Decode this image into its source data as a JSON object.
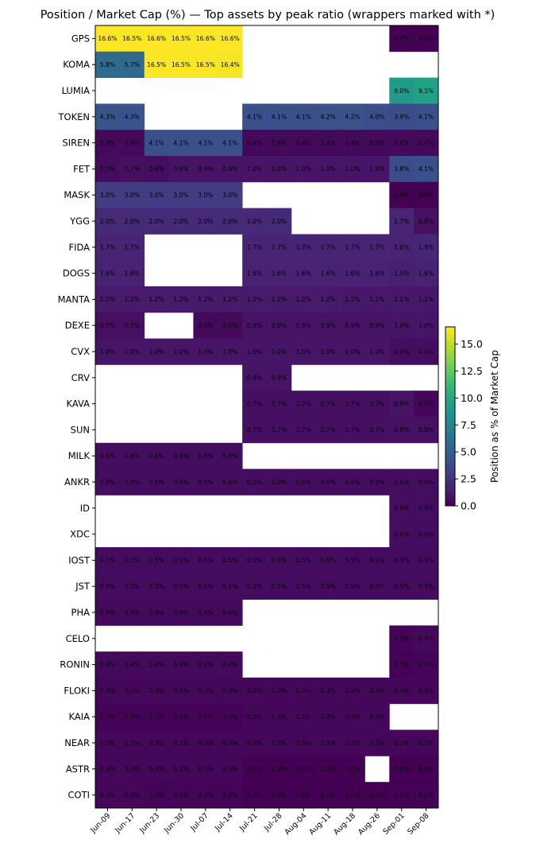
{
  "chart_data": {
    "type": "heatmap",
    "title": "Position / Market Cap (%) — Top assets by peak ratio (wrappers marked with *)",
    "xlabel": "",
    "ylabel": "",
    "columns": [
      "Jun-09",
      "Jun-17",
      "Jun-23",
      "Jun-30",
      "Jul-07",
      "Jul-14",
      "Jul-21",
      "Jul-28",
      "Aug-04",
      "Aug-11",
      "Aug-18",
      "Aug-26",
      "Sep-01",
      "Sep-08"
    ],
    "rows": [
      "GPS",
      "KOMA",
      "LUMIA",
      "TOKEN",
      "SIREN",
      "FET",
      "MASK",
      "YGG",
      "FIDA",
      "DOGS",
      "MANTA",
      "DEXE",
      "CVX",
      "CRV",
      "KAVA",
      "SUN",
      "MILK",
      "ANKR",
      "ID",
      "XDC",
      "IOST",
      "JST",
      "PHA",
      "CELO",
      "RONIN",
      "FLOKI",
      "KAIA",
      "NEAR",
      "ASTR",
      "COTI"
    ],
    "values": [
      [
        16.6,
        16.5,
        16.6,
        16.5,
        16.6,
        16.6,
        null,
        null,
        null,
        null,
        null,
        null,
        0.0,
        0.0
      ],
      [
        5.8,
        5.7,
        16.5,
        16.5,
        16.5,
        16.4,
        null,
        null,
        null,
        null,
        null,
        null,
        null,
        null
      ],
      [
        null,
        null,
        null,
        null,
        null,
        null,
        null,
        null,
        null,
        null,
        null,
        null,
        9.0,
        9.5
      ],
      [
        4.3,
        4.3,
        null,
        null,
        null,
        null,
        4.1,
        4.1,
        4.1,
        4.2,
        4.2,
        4.0,
        3.9,
        4.1
      ],
      [
        0.4,
        0.4,
        4.1,
        4.1,
        4.1,
        4.1,
        0.4,
        0.4,
        0.4,
        0.4,
        0.4,
        0.4,
        0.4,
        0.4
      ],
      [
        0.5,
        0.7,
        0.6,
        0.9,
        0.9,
        0.9,
        1.0,
        1.0,
        1.0,
        1.0,
        1.0,
        1.0,
        3.8,
        4.1
      ],
      [
        3.0,
        3.0,
        3.0,
        3.0,
        3.0,
        3.0,
        null,
        null,
        null,
        null,
        null,
        null,
        0.0,
        0.0
      ],
      [
        2.0,
        2.0,
        2.0,
        2.0,
        2.0,
        2.0,
        2.0,
        2.0,
        null,
        null,
        null,
        null,
        1.7,
        0.8
      ],
      [
        1.7,
        1.7,
        null,
        null,
        null,
        null,
        1.7,
        1.7,
        1.7,
        1.7,
        1.7,
        1.7,
        1.6,
        1.8
      ],
      [
        1.6,
        1.6,
        null,
        null,
        null,
        null,
        1.6,
        1.6,
        1.6,
        1.6,
        1.6,
        1.6,
        1.5,
        1.6
      ],
      [
        1.2,
        1.2,
        1.2,
        1.2,
        1.2,
        1.2,
        1.2,
        1.2,
        1.2,
        1.2,
        1.1,
        1.1,
        1.1,
        1.1
      ],
      [
        0.7,
        0.7,
        null,
        null,
        0.4,
        0.4,
        0.9,
        0.9,
        0.9,
        0.9,
        0.9,
        0.9,
        1.0,
        1.0
      ],
      [
        1.0,
        1.0,
        1.0,
        1.0,
        1.0,
        1.0,
        1.0,
        1.0,
        1.0,
        1.0,
        1.0,
        1.0,
        0.6,
        0.6
      ],
      [
        null,
        null,
        null,
        null,
        null,
        null,
        0.9,
        0.9,
        null,
        null,
        null,
        null,
        null,
        null
      ],
      [
        null,
        null,
        null,
        null,
        null,
        null,
        0.7,
        0.7,
        0.7,
        0.7,
        0.7,
        0.7,
        0.9,
        0.3
      ],
      [
        null,
        null,
        null,
        null,
        null,
        null,
        0.7,
        0.7,
        0.7,
        0.7,
        0.7,
        0.7,
        0.8,
        0.8
      ],
      [
        0.6,
        0.6,
        0.6,
        0.6,
        0.6,
        0.6,
        null,
        null,
        null,
        null,
        null,
        null,
        null,
        null
      ],
      [
        0.6,
        0.6,
        0.6,
        0.6,
        0.6,
        0.6,
        0.6,
        0.6,
        0.6,
        0.6,
        0.6,
        0.6,
        0.6,
        0.6
      ],
      [
        null,
        null,
        null,
        null,
        null,
        null,
        null,
        null,
        null,
        null,
        null,
        null,
        0.6,
        0.6
      ],
      [
        null,
        null,
        null,
        null,
        null,
        null,
        null,
        null,
        null,
        null,
        null,
        null,
        0.6,
        0.6
      ],
      [
        0.5,
        0.5,
        0.5,
        0.5,
        0.5,
        0.5,
        0.5,
        0.5,
        0.5,
        0.5,
        0.5,
        0.5,
        0.5,
        0.5
      ],
      [
        0.5,
        0.5,
        0.5,
        0.5,
        0.5,
        0.5,
        0.5,
        0.5,
        0.5,
        0.5,
        0.5,
        0.5,
        0.5,
        0.5
      ],
      [
        0.4,
        0.4,
        0.4,
        0.4,
        0.4,
        0.4,
        null,
        null,
        null,
        null,
        null,
        null,
        null,
        null
      ],
      [
        null,
        null,
        null,
        null,
        null,
        null,
        null,
        null,
        null,
        null,
        null,
        null,
        0.2,
        0.4
      ],
      [
        0.4,
        0.4,
        0.4,
        0.4,
        0.4,
        0.4,
        null,
        null,
        null,
        null,
        null,
        null,
        0.1,
        0.2
      ],
      [
        0.3,
        0.3,
        0.3,
        0.3,
        0.3,
        0.3,
        0.3,
        0.3,
        0.3,
        0.3,
        0.3,
        0.3,
        0.3,
        0.3
      ],
      [
        0.1,
        0.1,
        0.1,
        0.1,
        0.1,
        0.1,
        0.3,
        0.3,
        0.3,
        0.3,
        0.3,
        0.3,
        null,
        null
      ],
      [
        0.3,
        0.3,
        0.3,
        0.3,
        0.3,
        0.3,
        0.3,
        0.3,
        0.3,
        0.3,
        0.3,
        0.3,
        0.3,
        0.3
      ],
      [
        0.3,
        0.3,
        0.3,
        0.3,
        0.3,
        0.3,
        0.0,
        0.0,
        0.0,
        0.0,
        0.0,
        null,
        0.0,
        0.0
      ],
      [
        0.3,
        0.3,
        0.2,
        0.2,
        0.2,
        0.2,
        0.0,
        0.0,
        0.0,
        0.0,
        0.0,
        0.0,
        0.1,
        0.1
      ]
    ],
    "colorbar": {
      "label": "Position as % of Market Cap",
      "min": 0.0,
      "max": 16.6,
      "ticks": [
        0.0,
        2.5,
        5.0,
        7.5,
        10.0,
        12.5,
        15.0
      ],
      "tick_labels": [
        "0.0",
        "2.5",
        "5.0",
        "7.5",
        "10.0",
        "12.5",
        "15.0"
      ],
      "colormap": "viridis"
    },
    "cell_label_suffix": "%",
    "missing_color": "#ffffff"
  }
}
